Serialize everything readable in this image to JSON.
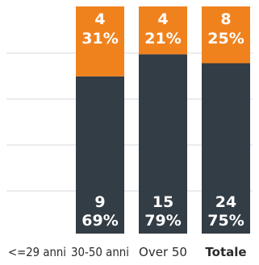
{
  "chart_data": {
    "type": "bar",
    "stacked": true,
    "categories": [
      "<=29 anni",
      "30-50 anni",
      "Over 50",
      "Totale"
    ],
    "bold_categories": [
      "Totale"
    ],
    "series": [
      {
        "color": "#333d45",
        "values": [
          0,
          9,
          15,
          24
        ],
        "value_labels": [
          "",
          "9",
          "15",
          "24"
        ],
        "percent_labels": [
          "",
          "69%",
          "79%",
          "75%"
        ]
      },
      {
        "color": "#f0821e",
        "values": [
          0,
          4,
          4,
          8
        ],
        "value_labels": [
          "",
          "4",
          "4",
          "8"
        ],
        "percent_labels": [
          "",
          "31%",
          "21%",
          "25%"
        ]
      }
    ],
    "normalized_to_percent": true,
    "ylim": [
      0,
      100
    ],
    "grid": true,
    "gridline_color": "#e3e6ea",
    "legend": "none"
  }
}
